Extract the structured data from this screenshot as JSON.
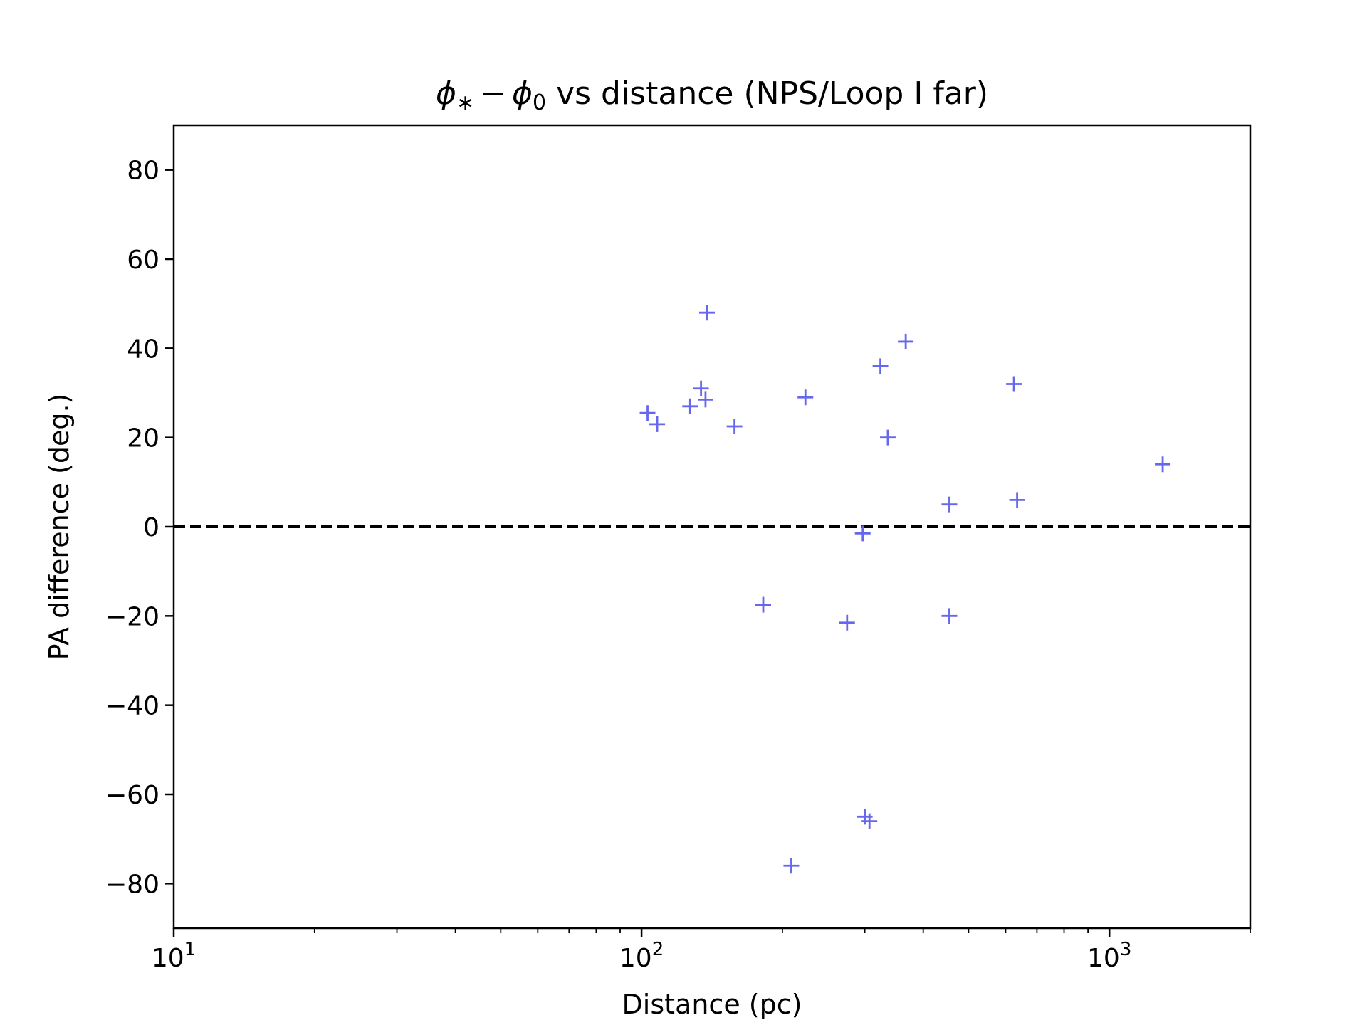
{
  "chart_data": {
    "type": "scatter",
    "title_parts": {
      "phi": "ϕ",
      "star": "∗",
      "minus": "−",
      "zero": "0",
      "rest": " vs distance (NPS/Loop I far)"
    },
    "xlabel": "Distance (pc)",
    "ylabel": "PA difference (deg.)",
    "xscale": "log",
    "xlim": [
      10,
      2000
    ],
    "ylim": [
      -90,
      90
    ],
    "x_ticks": [
      {
        "base": "10",
        "exp": "1",
        "value": 10
      },
      {
        "base": "10",
        "exp": "2",
        "value": 100
      },
      {
        "base": "10",
        "exp": "3",
        "value": 1000
      }
    ],
    "y_ticks": [
      "80",
      "60",
      "40",
      "20",
      "0",
      "−20",
      "−40",
      "−60",
      "−80"
    ],
    "reference_line": {
      "y": 0,
      "style": "dashed",
      "color": "#000000"
    },
    "marker": "+",
    "marker_color": "#6666ee",
    "grid": false,
    "series": [
      {
        "points": [
          {
            "x": 103,
            "y": 25.5
          },
          {
            "x": 108,
            "y": 23
          },
          {
            "x": 127,
            "y": 27
          },
          {
            "x": 134,
            "y": 31
          },
          {
            "x": 137,
            "y": 28.5
          },
          {
            "x": 138,
            "y": 48
          },
          {
            "x": 158,
            "y": 22.5
          },
          {
            "x": 182,
            "y": -17.5
          },
          {
            "x": 209,
            "y": -76
          },
          {
            "x": 224,
            "y": 29
          },
          {
            "x": 275,
            "y": -21.5
          },
          {
            "x": 297,
            "y": -1.5
          },
          {
            "x": 300,
            "y": -65
          },
          {
            "x": 307,
            "y": -66
          },
          {
            "x": 324,
            "y": 36
          },
          {
            "x": 336,
            "y": 20
          },
          {
            "x": 367,
            "y": 41.5
          },
          {
            "x": 455,
            "y": 5
          },
          {
            "x": 455,
            "y": -20
          },
          {
            "x": 625,
            "y": 32
          },
          {
            "x": 635,
            "y": 6
          },
          {
            "x": 1300,
            "y": 14
          }
        ]
      }
    ]
  }
}
